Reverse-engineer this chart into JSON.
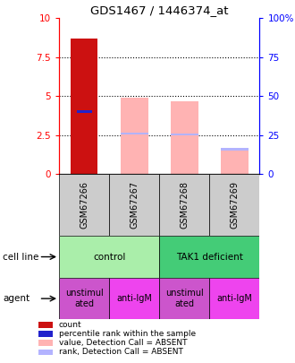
{
  "title": "GDS1467 / 1446374_at",
  "samples": [
    "GSM67266",
    "GSM67267",
    "GSM67268",
    "GSM67269"
  ],
  "red_bars": [
    8.7,
    0,
    0,
    0
  ],
  "blue_markers": [
    4.0,
    0,
    0,
    0
  ],
  "pink_bars": [
    0,
    4.9,
    4.7,
    1.7
  ],
  "lavender_markers": [
    0,
    2.6,
    2.55,
    1.6
  ],
  "ylim": [
    0,
    10
  ],
  "yticks_left": [
    0,
    2.5,
    5,
    7.5,
    10
  ],
  "yticks_right": [
    0,
    25,
    50,
    75,
    100
  ],
  "ytick_labels_left": [
    "0",
    "2.5",
    "5",
    "7.5",
    "10"
  ],
  "ytick_labels_right": [
    "0",
    "25",
    "50",
    "75",
    "100%"
  ],
  "agent_labels": [
    "unstimul\nated",
    "anti-IgM",
    "unstimul\nated",
    "anti-IgM"
  ],
  "bar_width": 0.55,
  "red_color": "#cc1111",
  "blue_color": "#2222cc",
  "pink_color": "#ffb3b3",
  "lavender_color": "#b3b3ff",
  "bg_color": "#cccccc",
  "control_color": "#aaeeaa",
  "tak1_color": "#44cc77",
  "agent_unstim_color": "#cc55cc",
  "agent_antilgm_color": "#ee44ee"
}
